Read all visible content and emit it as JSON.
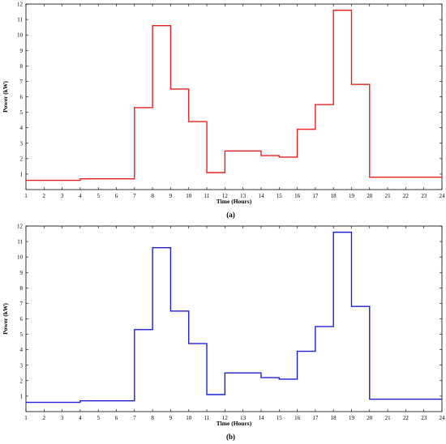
{
  "chart_data": [
    {
      "type": "line",
      "step": true,
      "panel_label": "(a)",
      "xlabel": "Time (Hours)",
      "ylabel": "Power (kW)",
      "color": "#e8201c",
      "xlim": [
        1,
        24
      ],
      "ylim": [
        0,
        12
      ],
      "xticks": [
        "1",
        "2",
        "3",
        "4",
        "5",
        "6",
        "7",
        "8",
        "9",
        "10",
        "11",
        "12",
        "13",
        "14",
        "15",
        "16",
        "17",
        "18",
        "19",
        "20",
        "21",
        "22",
        "23",
        "24"
      ],
      "yticks": [
        "1",
        "2",
        "3",
        "4",
        "5",
        "6",
        "7",
        "8",
        "9",
        "10",
        "11",
        "12"
      ],
      "x": [
        1,
        4,
        7,
        8,
        9,
        10,
        11,
        12,
        14,
        15,
        16,
        17,
        18,
        19,
        20
      ],
      "y": [
        0.6,
        0.7,
        5.3,
        10.6,
        6.5,
        4.4,
        1.1,
        2.5,
        2.2,
        2.1,
        3.9,
        5.5,
        11.6,
        6.8,
        0.8
      ],
      "x_end": 24
    },
    {
      "type": "line",
      "step": true,
      "panel_label": "(b)",
      "xlabel": "Time (Hours)",
      "ylabel": "Power (kW)",
      "color": "#1f1fd6",
      "xlim": [
        1,
        24
      ],
      "ylim": [
        0,
        12
      ],
      "xticks": [
        "1",
        "2",
        "3",
        "4",
        "5",
        "6",
        "7",
        "8",
        "9",
        "10",
        "11",
        "12",
        "13",
        "14",
        "15",
        "16",
        "17",
        "18",
        "19",
        "20",
        "21",
        "22",
        "23",
        "24"
      ],
      "yticks": [
        "1",
        "2",
        "3",
        "4",
        "5",
        "6",
        "7",
        "8",
        "9",
        "10",
        "11",
        "12"
      ],
      "x": [
        1,
        4,
        7,
        8,
        9,
        10,
        11,
        12,
        14,
        15,
        16,
        17,
        18,
        19,
        20
      ],
      "y": [
        0.6,
        0.7,
        5.3,
        10.6,
        6.5,
        4.4,
        1.1,
        2.5,
        2.2,
        2.1,
        3.9,
        5.5,
        11.6,
        6.8,
        0.8
      ],
      "x_end": 24
    }
  ]
}
